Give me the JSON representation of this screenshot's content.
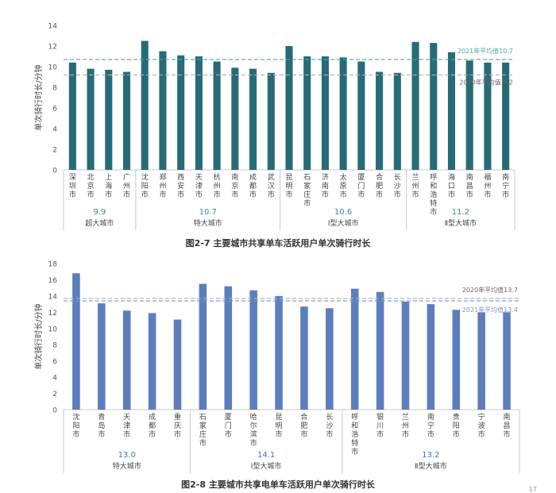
{
  "chart_data": [
    {
      "type": "bar",
      "ylabel": "单次骑行时长/分钟",
      "ylim": [
        0,
        14
      ],
      "yticks": [
        0,
        2,
        4,
        6,
        8,
        10,
        12,
        14
      ],
      "categories": [
        "深圳市",
        "北京市",
        "上海市",
        "广州市",
        "沈阳市",
        "郑州市",
        "西安市",
        "天津市",
        "杭州市",
        "南京市",
        "成都市",
        "武汉市",
        "昆明市",
        "石家庄市",
        "济南市",
        "太原市",
        "厦门市",
        "合肥市",
        "长沙市",
        "兰州市",
        "呼和浩特市",
        "海口市",
        "南昌市",
        "福州市",
        "南宁市"
      ],
      "values": [
        10.4,
        9.8,
        9.7,
        9.5,
        12.5,
        11.5,
        11.1,
        11.0,
        10.5,
        9.9,
        9.8,
        9.4,
        12.0,
        11.0,
        11.0,
        10.9,
        10.5,
        9.5,
        9.4,
        12.4,
        12.3,
        11.4,
        10.6,
        10.4,
        10.4
      ],
      "bar_color": "#276b78",
      "reference_lines": [
        {
          "label": "2021年平均值10.7",
          "value": 10.7,
          "color": "#53a99e"
        },
        {
          "label": "2020年平均值 9.2",
          "value": 9.2,
          "color": "#b0b0b0"
        }
      ],
      "groups": [
        {
          "name": "超大城市",
          "average": "9.9",
          "count": 4
        },
        {
          "name": "特大城市",
          "average": "10.7",
          "count": 8
        },
        {
          "name": "Ⅰ型大城市",
          "average": "10.6",
          "count": 7
        },
        {
          "name": "Ⅱ型大城市",
          "average": "11.2",
          "count": 6
        }
      ],
      "caption": "图2-7 主要城市共享单车活跃用户单次骑行时长"
    },
    {
      "type": "bar",
      "ylabel": "单次骑行时长/分钟",
      "ylim": [
        0,
        18
      ],
      "yticks": [
        0,
        2,
        4,
        6,
        8,
        10,
        12,
        14,
        16,
        18
      ],
      "categories": [
        "沈阳市",
        "青岛市",
        "天津市",
        "成都市",
        "重庆市",
        "石家庄市",
        "厦门市",
        "哈尔滨市",
        "昆明市",
        "合肥市",
        "长沙市",
        "呼和浩特市",
        "银川市",
        "兰州市",
        "南宁市",
        "贵阳市",
        "宁波市",
        "南昌市"
      ],
      "values": [
        16.8,
        13.1,
        12.2,
        11.9,
        11.1,
        15.5,
        15.2,
        14.7,
        14.0,
        12.7,
        12.5,
        14.9,
        14.5,
        13.3,
        13.0,
        12.3,
        12.0,
        12.0
      ],
      "bar_color": "#5b7fbd",
      "reference_lines": [
        {
          "label": "2020年平均值13.7",
          "value": 13.7,
          "color": "#b0b0b0"
        },
        {
          "label": "2021年平均值13.4",
          "value": 13.4,
          "color": "#7b96c8"
        }
      ],
      "groups": [
        {
          "name": "特大城市",
          "average": "13.0",
          "count": 5
        },
        {
          "name": "Ⅰ型大城市",
          "average": "14.1",
          "count": 6
        },
        {
          "name": "Ⅱ型大城市",
          "average": "13.2",
          "count": 7
        }
      ],
      "caption": "图2-8 主要城市共享电单车活跃用户单次骑行时长"
    }
  ],
  "page_number": "17"
}
